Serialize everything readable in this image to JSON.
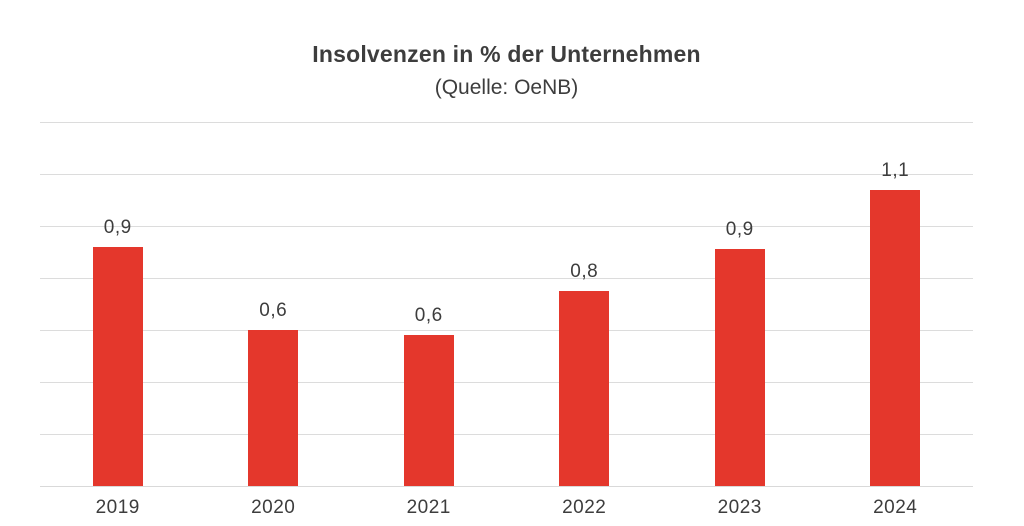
{
  "chart_data": {
    "type": "bar",
    "title": "Insolvenzen in % der Unternehmen",
    "subtitle": "(Quelle: OeNB)",
    "categories": [
      "2019",
      "2020",
      "2021",
      "2022",
      "2023",
      "2024"
    ],
    "values": [
      0.9,
      0.6,
      0.6,
      0.8,
      0.9,
      1.1
    ],
    "value_labels_display": [
      "0,9",
      "0,6",
      "0,6",
      "0,8",
      "0,9",
      "1,1"
    ],
    "values_precise_estimated_from_gridlines": [
      0.92,
      0.6,
      0.58,
      0.75,
      0.91,
      1.14
    ],
    "xlabel": "",
    "ylabel": "",
    "ylim": [
      0,
      1.4
    ],
    "y_gridline_step": 0.2,
    "y_tick_labels_visible": false,
    "grid": "horizontal",
    "legend_position": "none",
    "decimal_separator": ",",
    "colors": {
      "bar": "#e4372c",
      "gridline": "#dcdcdc",
      "axis_line": "#d9d9d9",
      "text": "#3d3d3d",
      "background": "#ffffff"
    }
  }
}
